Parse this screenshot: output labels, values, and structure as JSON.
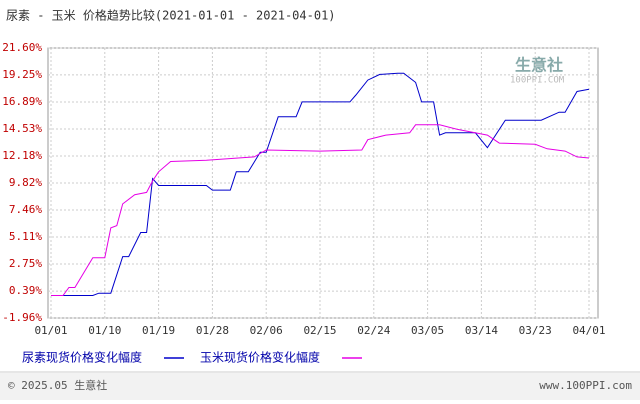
{
  "chart_data": {
    "type": "line",
    "title": "尿素 - 玉米 价格趋势比较(2021-01-01 - 2021-04-01)",
    "watermark": "生意社",
    "watermark_sub": "100PPI.COM",
    "footer_left": "© 2025.05 生意社",
    "footer_right": "www.100PPI.com",
    "ylim": [
      -1.96,
      21.6
    ],
    "yticks": [
      {
        "value": -1.96,
        "label": "-1.96%"
      },
      {
        "value": 0.39,
        "label": "0.39%"
      },
      {
        "value": 2.75,
        "label": "2.75%"
      },
      {
        "value": 5.11,
        "label": "5.11%"
      },
      {
        "value": 7.46,
        "label": "7.46%"
      },
      {
        "value": 9.82,
        "label": "9.82%"
      },
      {
        "value": 12.18,
        "label": "12.18%"
      },
      {
        "value": 14.53,
        "label": "14.53%"
      },
      {
        "value": 16.89,
        "label": "16.89%"
      },
      {
        "value": 19.25,
        "label": "19.25%"
      },
      {
        "value": 21.6,
        "label": "21.60%"
      }
    ],
    "xticks": [
      "01/01",
      "01/10",
      "01/19",
      "01/28",
      "02/06",
      "02/15",
      "02/24",
      "03/05",
      "03/14",
      "03/23",
      "04/01"
    ],
    "grid": true,
    "series": [
      {
        "name": "尿素现货价格变化幅度",
        "color": "#0000cc",
        "x": [
          "01/01",
          "01/08",
          "01/09",
          "01/11",
          "01/13",
          "01/14",
          "01/16",
          "01/17",
          "01/18",
          "01/19",
          "01/27",
          "01/28",
          "01/31",
          "02/01",
          "02/03",
          "02/05",
          "02/06",
          "02/08",
          "02/11",
          "02/12",
          "02/20",
          "02/21",
          "02/23",
          "02/25",
          "02/28",
          "03/01",
          "03/03",
          "03/04",
          "03/06",
          "03/07",
          "03/08",
          "03/13",
          "03/15",
          "03/18",
          "03/24",
          "03/27",
          "03/28",
          "03/30",
          "04/01"
        ],
        "values": [
          0,
          0,
          0.2,
          0.2,
          3.4,
          3.4,
          5.5,
          5.5,
          10.2,
          9.6,
          9.6,
          9.2,
          9.2,
          10.8,
          10.8,
          12.5,
          12.5,
          15.6,
          15.6,
          16.9,
          16.9,
          17.5,
          18.8,
          19.3,
          19.4,
          19.4,
          18.6,
          16.9,
          16.9,
          14.0,
          14.2,
          14.2,
          12.9,
          15.3,
          15.3,
          16.0,
          16.0,
          17.8,
          18.0
        ]
      },
      {
        "name": "玉米现货价格变化幅度",
        "color": "#e600e6",
        "x": [
          "01/01",
          "01/03",
          "01/04",
          "01/05",
          "01/08",
          "01/10",
          "01/11",
          "01/12",
          "01/13",
          "01/15",
          "01/17",
          "01/18",
          "01/19",
          "01/21",
          "01/27",
          "02/04",
          "02/06",
          "02/15",
          "02/22",
          "02/23",
          "02/26",
          "03/02",
          "03/03",
          "03/07",
          "03/10",
          "03/15",
          "03/17",
          "03/23",
          "03/25",
          "03/28",
          "03/30",
          "04/01"
        ],
        "values": [
          0,
          0,
          0.7,
          0.7,
          3.3,
          3.3,
          5.9,
          6.1,
          8.0,
          8.8,
          9.0,
          10.0,
          10.8,
          11.7,
          11.8,
          12.1,
          12.7,
          12.6,
          12.7,
          13.6,
          14.0,
          14.2,
          14.9,
          14.9,
          14.5,
          14.0,
          13.3,
          13.2,
          12.8,
          12.6,
          12.1,
          12.0
        ]
      }
    ]
  }
}
